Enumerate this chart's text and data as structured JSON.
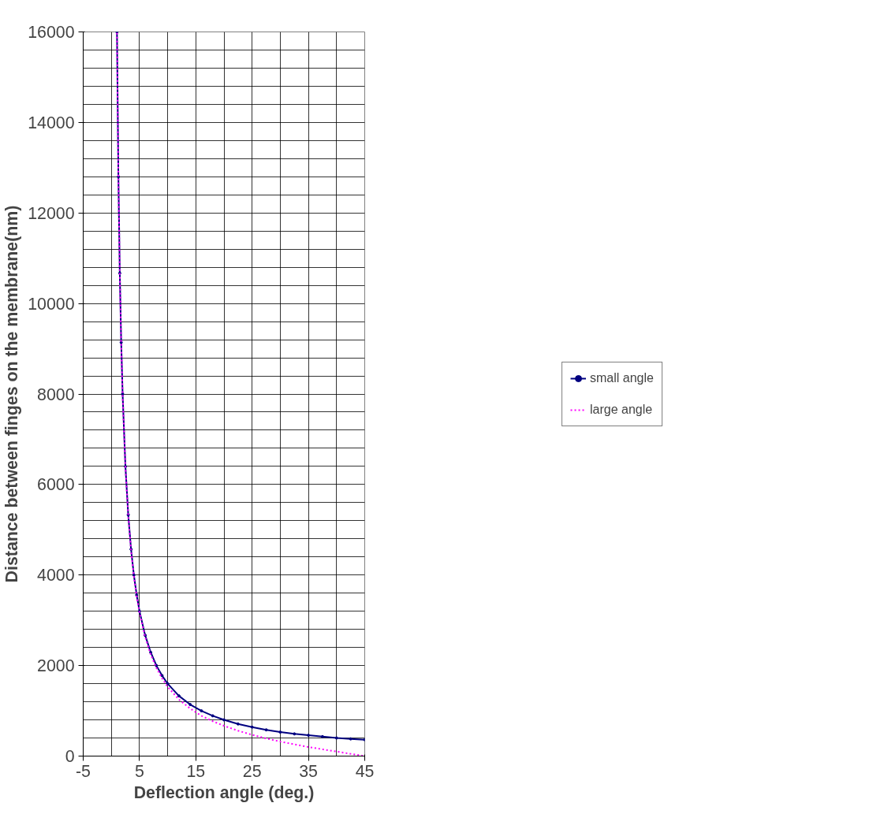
{
  "chart_data": {
    "type": "line",
    "xlabel": "Deflection angle (deg.)",
    "ylabel": "Distance between finges on the membrane(nm)",
    "xlim": [
      -5,
      45
    ],
    "ylim": [
      0,
      16000
    ],
    "xticks": [
      -5,
      {
        "value": 0,
        "label": null
      },
      5,
      {
        "value": 10,
        "label": null
      },
      15,
      {
        "value": 20,
        "label": null
      },
      25,
      {
        "value": 30,
        "label": null
      },
      35,
      {
        "value": 40,
        "label": null
      },
      45
    ],
    "yticks": [
      0,
      {
        "value": 400,
        "label": null
      },
      {
        "value": 800,
        "label": null
      },
      {
        "value": 1200,
        "label": null
      },
      {
        "value": 1600,
        "label": null
      },
      2000,
      {
        "value": 2400,
        "label": null
      },
      {
        "value": 2800,
        "label": null
      },
      {
        "value": 3200,
        "label": null
      },
      {
        "value": 3600,
        "label": null
      },
      4000,
      {
        "value": 4400,
        "label": null
      },
      {
        "value": 4800,
        "label": null
      },
      {
        "value": 5200,
        "label": null
      },
      {
        "value": 5600,
        "label": null
      },
      6000,
      {
        "value": 6400,
        "label": null
      },
      {
        "value": 6800,
        "label": null
      },
      {
        "value": 7200,
        "label": null
      },
      {
        "value": 7600,
        "label": null
      },
      8000,
      {
        "value": 8400,
        "label": null
      },
      {
        "value": 8800,
        "label": null
      },
      {
        "value": 9200,
        "label": null
      },
      {
        "value": 9600,
        "label": null
      },
      10000,
      {
        "value": 10400,
        "label": null
      },
      {
        "value": 10800,
        "label": null
      },
      {
        "value": 11200,
        "label": null
      },
      {
        "value": 11600,
        "label": null
      },
      12000,
      {
        "value": 12400,
        "label": null
      },
      {
        "value": 12800,
        "label": null
      },
      {
        "value": 13200,
        "label": null
      },
      {
        "value": 13600,
        "label": null
      },
      14000,
      {
        "value": 14400,
        "label": null
      },
      {
        "value": 14800,
        "label": null
      },
      {
        "value": 15200,
        "label": null
      },
      {
        "value": 15600,
        "label": null
      },
      16000
    ],
    "x": [
      1,
      1.25,
      1.5,
      1.75,
      2,
      2.5,
      3,
      3.5,
      4,
      4.5,
      5,
      6,
      7,
      8,
      9,
      10,
      12,
      14,
      16,
      18,
      20,
      22.5,
      25,
      27.5,
      30,
      32.5,
      35,
      37.5,
      40,
      42.5,
      45
    ],
    "grid": true,
    "legend": "right",
    "series": [
      {
        "name": "small angle",
        "color": "#000080",
        "marker": "circle",
        "line_style": "solid",
        "values": [
          16000,
          12800,
          10670,
          9140,
          8000,
          6400,
          5330,
          4570,
          4000,
          3560,
          3200,
          2670,
          2290,
          2000,
          1780,
          1600,
          1330,
          1140,
          1000,
          890,
          800,
          710,
          640,
          580,
          530,
          490,
          460,
          430,
          400,
          380,
          360
        ]
      },
      {
        "name": "large angle",
        "color": "#ff00ff",
        "marker": "none",
        "line_style": "dotted",
        "values": [
          15980,
          12780,
          10650,
          9120,
          7980,
          6380,
          5310,
          4540,
          3970,
          3520,
          3170,
          2630,
          2240,
          1950,
          1720,
          1530,
          1250,
          1050,
          890,
          770,
          670,
          560,
          470,
          390,
          320,
          260,
          200,
          150,
          100,
          50,
          0
        ]
      }
    ]
  }
}
